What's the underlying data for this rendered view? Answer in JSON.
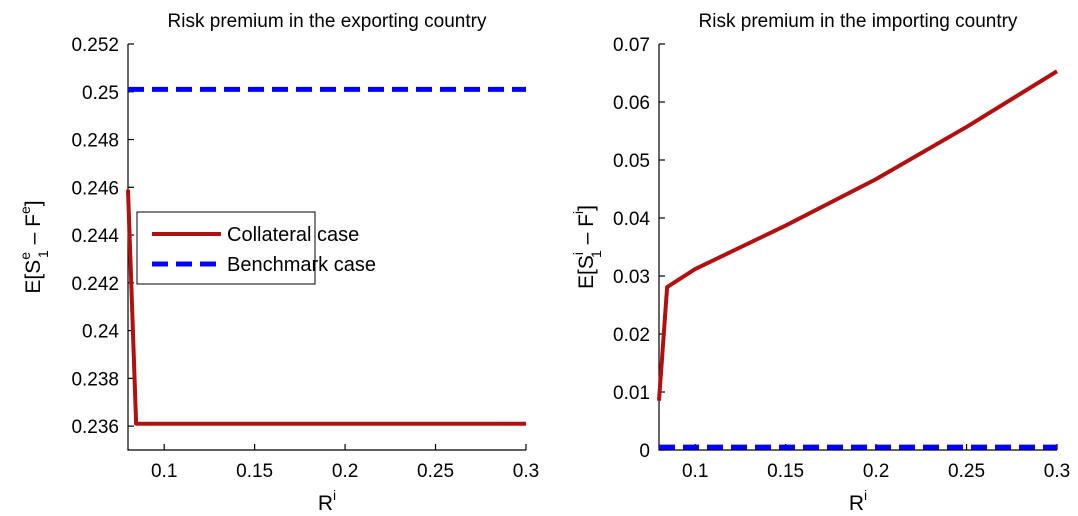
{
  "chart_data": [
    {
      "type": "line",
      "title": "Risk premium in the exporting country",
      "xlabel": {
        "base": "R",
        "sup": "i"
      },
      "ylabel": {
        "pre": "E[S",
        "sup1": "e",
        "sub1": "1",
        "mid": " – F",
        "sup2": "e",
        "post": "]"
      },
      "xlim": [
        0.08,
        0.3
      ],
      "ylim": [
        0.235,
        0.252
      ],
      "xticks": [
        0.1,
        0.15,
        0.2,
        0.25,
        0.3
      ],
      "xtick_labels": [
        "0.1",
        "0.15",
        "0.2",
        "0.25",
        "0.3"
      ],
      "yticks": [
        0.236,
        0.238,
        0.24,
        0.242,
        0.244,
        0.246,
        0.248,
        0.25,
        0.252
      ],
      "ytick_labels": [
        "0.236",
        "0.238",
        "0.24",
        "0.242",
        "0.244",
        "0.246",
        "0.248",
        "0.25",
        "0.252"
      ],
      "grid": false,
      "legend": {
        "placement": "center-left",
        "entries": [
          "Collateral case",
          "Benchmark case"
        ]
      },
      "series": [
        {
          "name": "Collateral case",
          "color": "#b01010",
          "style": "solid",
          "x": [
            0.08,
            0.0845,
            0.1,
            0.15,
            0.2,
            0.25,
            0.3
          ],
          "y": [
            0.2459,
            0.2361,
            0.2361,
            0.2361,
            0.2361,
            0.2361,
            0.2361
          ]
        },
        {
          "name": "Benchmark case",
          "color": "#0000ff",
          "style": "dashed",
          "x": [
            0.08,
            0.3
          ],
          "y": [
            0.2501,
            0.2501
          ]
        }
      ]
    },
    {
      "type": "line",
      "title": "Risk premium in the importing country",
      "xlabel": {
        "base": "R",
        "sup": "i"
      },
      "ylabel": {
        "pre": "E[S",
        "sup1": "i",
        "sub1": "1",
        "mid": " – F",
        "sup2": "i",
        "post": "]"
      },
      "xlim": [
        0.08,
        0.3
      ],
      "ylim": [
        0,
        0.07
      ],
      "xticks": [
        0.1,
        0.15,
        0.2,
        0.25,
        0.3
      ],
      "xtick_labels": [
        "0.1",
        "0.15",
        "0.2",
        "0.25",
        "0.3"
      ],
      "yticks": [
        0,
        0.01,
        0.02,
        0.03,
        0.04,
        0.05,
        0.06,
        0.07
      ],
      "ytick_labels": [
        "0",
        "0.01",
        "0.02",
        "0.03",
        "0.04",
        "0.05",
        "0.06",
        "0.07"
      ],
      "grid": false,
      "series": [
        {
          "name": "Collateral case",
          "color": "#b01010",
          "style": "solid",
          "x": [
            0.08,
            0.0845,
            0.1,
            0.15,
            0.2,
            0.25,
            0.3
          ],
          "y": [
            0.0085,
            0.0281,
            0.0312,
            0.0387,
            0.0467,
            0.0557,
            0.0653
          ]
        },
        {
          "name": "Benchmark case",
          "color": "#0000ff",
          "style": "dashed",
          "x": [
            0.08,
            0.3
          ],
          "y": [
            0.0005,
            0.0005
          ]
        }
      ]
    }
  ]
}
